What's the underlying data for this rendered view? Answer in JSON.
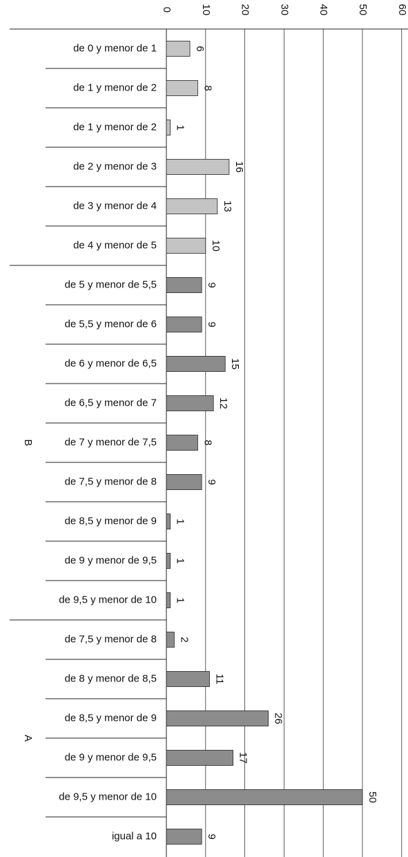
{
  "chart_data": {
    "type": "bar",
    "orientation": "horizontal",
    "xlim": [
      0,
      60
    ],
    "ticks": [
      0,
      10,
      20,
      30,
      40,
      50,
      60
    ],
    "grid": true,
    "legend": "none",
    "colors": {
      "light_bar": "#c4c4c4",
      "dark_bar": "#8c8c8c",
      "bar_stroke": "#222222"
    },
    "groups": [
      {
        "label": "",
        "shade": "light",
        "count": 6
      },
      {
        "label": "B",
        "shade": "dark",
        "count": 9
      },
      {
        "label": "A",
        "shade": "dark",
        "count": 6
      }
    ],
    "categories": [
      "de 0 y menor de 1",
      "de 1 y menor de 2",
      "de 1 y menor de 2",
      "de 2 y menor de 3",
      "de 3 y menor de 4",
      "de 4 y menor de 5",
      "de 5 y menor de 5,5",
      "de 5,5 y menor de 6",
      "de 6 y menor de 6,5",
      "de 6,5 y menor de 7",
      "de 7 y menor de 7,5",
      "de 7,5 y menor de 8",
      "de 8,5 y menor de 9",
      "de 9 y menor de 9,5",
      "de 9,5 y menor de 10",
      "de 7,5 y menor de 8",
      "de 8 y menor de 8,5",
      "de 8,5 y menor de 9",
      "de 9 y menor de 9,5",
      "de 9,5 y menor de 10",
      "igual a 10"
    ],
    "values": [
      6,
      8,
      1,
      16,
      13,
      10,
      9,
      9,
      15,
      12,
      8,
      9,
      1,
      1,
      1,
      2,
      11,
      26,
      17,
      50,
      9
    ]
  }
}
